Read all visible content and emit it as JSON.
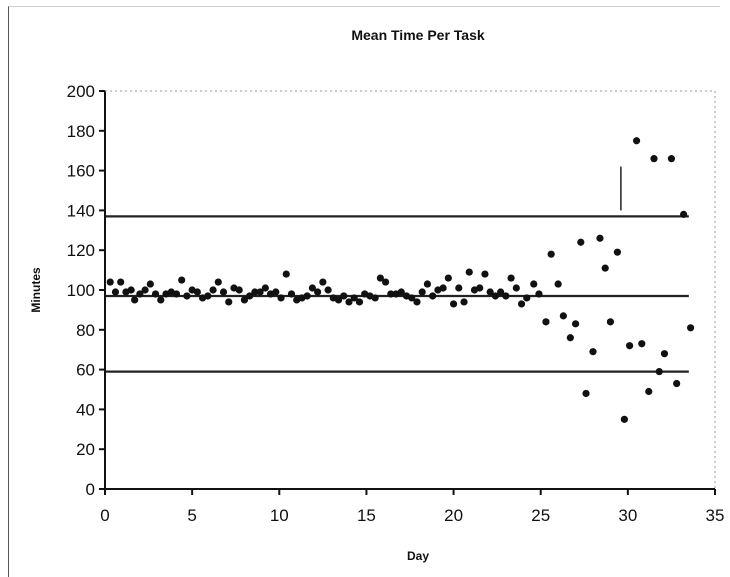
{
  "chart_data": {
    "type": "scatter",
    "title": "Mean Time Per Task",
    "xlabel": "Day",
    "ylabel": "Minutes",
    "xlim": [
      0,
      35
    ],
    "ylim": [
      0,
      200
    ],
    "xticks": [
      "0",
      "5",
      "10",
      "15",
      "20",
      "25",
      "30",
      "35"
    ],
    "yticks": [
      "0",
      "20",
      "40",
      "60",
      "80",
      "100",
      "120",
      "140",
      "160",
      "180",
      "200"
    ],
    "grid": false,
    "legend": "none",
    "reference_lines": [
      {
        "y": 137,
        "x_start": 0,
        "x_end": 33.5
      },
      {
        "y": 97,
        "x_start": 0,
        "x_end": 33.5
      },
      {
        "y": 59,
        "x_start": 0,
        "x_end": 33.5
      }
    ],
    "marker_vline": {
      "x": 29.6,
      "y_start": 140,
      "y_end": 162
    },
    "point_color": "#111111",
    "points": [
      [
        0.3,
        104
      ],
      [
        0.6,
        99
      ],
      [
        0.9,
        104
      ],
      [
        1.2,
        99
      ],
      [
        1.5,
        100
      ],
      [
        1.7,
        95
      ],
      [
        2.0,
        98
      ],
      [
        2.3,
        100
      ],
      [
        2.6,
        103
      ],
      [
        2.9,
        98
      ],
      [
        3.2,
        95
      ],
      [
        3.5,
        98
      ],
      [
        3.8,
        99
      ],
      [
        4.1,
        98
      ],
      [
        4.4,
        105
      ],
      [
        4.7,
        97
      ],
      [
        5.0,
        100
      ],
      [
        5.3,
        99
      ],
      [
        5.6,
        96
      ],
      [
        5.9,
        97
      ],
      [
        6.2,
        100
      ],
      [
        6.5,
        104
      ],
      [
        6.8,
        99
      ],
      [
        7.1,
        94
      ],
      [
        7.4,
        101
      ],
      [
        7.7,
        100
      ],
      [
        8.0,
        95
      ],
      [
        8.3,
        97
      ],
      [
        8.6,
        99
      ],
      [
        8.9,
        99
      ],
      [
        9.2,
        101
      ],
      [
        9.5,
        98
      ],
      [
        9.8,
        99
      ],
      [
        10.1,
        96
      ],
      [
        10.4,
        108
      ],
      [
        10.7,
        98
      ],
      [
        11.0,
        95
      ],
      [
        11.3,
        96
      ],
      [
        11.6,
        97
      ],
      [
        11.9,
        101
      ],
      [
        12.2,
        99
      ],
      [
        12.5,
        104
      ],
      [
        12.8,
        100
      ],
      [
        13.1,
        96
      ],
      [
        13.4,
        95
      ],
      [
        13.7,
        97
      ],
      [
        14.0,
        94
      ],
      [
        14.3,
        96
      ],
      [
        14.6,
        94
      ],
      [
        14.9,
        98
      ],
      [
        15.2,
        97
      ],
      [
        15.5,
        96
      ],
      [
        15.8,
        106
      ],
      [
        16.1,
        104
      ],
      [
        16.4,
        98
      ],
      [
        16.7,
        98
      ],
      [
        17.0,
        99
      ],
      [
        17.3,
        97
      ],
      [
        17.6,
        96
      ],
      [
        17.9,
        94
      ],
      [
        18.2,
        99
      ],
      [
        18.5,
        103
      ],
      [
        18.8,
        97
      ],
      [
        19.1,
        100
      ],
      [
        19.4,
        101
      ],
      [
        19.7,
        106
      ],
      [
        20.0,
        93
      ],
      [
        20.3,
        101
      ],
      [
        20.6,
        94
      ],
      [
        20.9,
        109
      ],
      [
        21.2,
        100
      ],
      [
        21.5,
        101
      ],
      [
        21.8,
        108
      ],
      [
        22.1,
        99
      ],
      [
        22.4,
        97
      ],
      [
        22.7,
        99
      ],
      [
        23.0,
        97
      ],
      [
        23.3,
        106
      ],
      [
        23.6,
        101
      ],
      [
        23.9,
        93
      ],
      [
        24.2,
        96
      ],
      [
        24.6,
        103
      ],
      [
        24.9,
        98
      ],
      [
        25.3,
        84
      ],
      [
        25.6,
        118
      ],
      [
        26.0,
        103
      ],
      [
        26.3,
        87
      ],
      [
        26.7,
        76
      ],
      [
        27.0,
        83
      ],
      [
        27.3,
        124
      ],
      [
        27.6,
        48
      ],
      [
        28.0,
        69
      ],
      [
        28.4,
        126
      ],
      [
        28.7,
        111
      ],
      [
        29.0,
        84
      ],
      [
        29.4,
        119
      ],
      [
        29.8,
        35
      ],
      [
        30.1,
        72
      ],
      [
        30.5,
        175
      ],
      [
        30.8,
        73
      ],
      [
        31.2,
        49
      ],
      [
        31.5,
        166
      ],
      [
        31.8,
        59
      ],
      [
        32.1,
        68
      ],
      [
        32.5,
        166
      ],
      [
        32.8,
        53
      ],
      [
        33.2,
        138
      ],
      [
        33.6,
        81
      ]
    ]
  }
}
